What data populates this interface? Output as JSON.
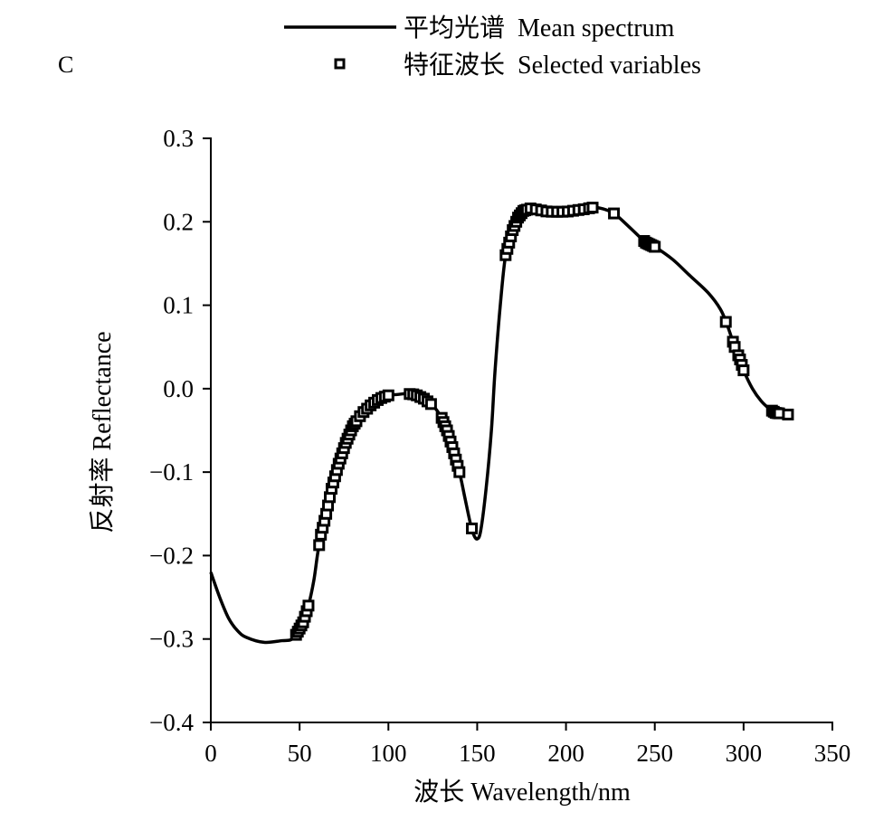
{
  "chart_data": {
    "type": "line",
    "panel_label": "C",
    "xlabel": "波长 Wavelength/nm",
    "ylabel": "反射率 Reflectance",
    "xlim": [
      0,
      350
    ],
    "ylim": [
      -0.4,
      0.3
    ],
    "xticks": [
      0,
      50,
      100,
      150,
      200,
      250,
      300,
      350
    ],
    "xtick_labels": [
      "0",
      "50",
      "100",
      "150",
      "200",
      "250",
      "300",
      "350"
    ],
    "yticks": [
      0.3,
      0.2,
      0.1,
      0.0,
      -0.1,
      -0.2,
      -0.3,
      -0.4
    ],
    "ytick_labels": [
      "0.3",
      "0.2",
      "0.1",
      "0.0",
      "−0.1",
      "−0.2",
      "−0.3",
      "−0.4"
    ],
    "grid": false,
    "legend_position": "top",
    "legend": [
      "平均光谱  Mean spectrum",
      "特征波长  Selected variables"
    ],
    "series": [
      {
        "name": "平均光谱  Mean spectrum",
        "x": [
          0,
          5,
          10,
          15,
          20,
          30,
          40,
          45,
          48,
          52,
          55,
          58,
          60,
          62,
          65,
          68,
          72,
          76,
          80,
          85,
          90,
          95,
          100,
          105,
          110,
          115,
          120,
          125,
          130,
          133,
          136,
          140,
          143,
          146,
          148,
          150,
          152,
          155,
          158,
          160,
          163,
          166,
          170,
          173,
          176,
          180,
          185,
          190,
          200,
          210,
          215,
          220,
          227,
          235,
          245,
          250,
          260,
          270,
          280,
          287,
          291,
          295,
          298,
          300,
          305,
          310,
          315,
          318,
          325
        ],
        "y": [
          -0.22,
          -0.25,
          -0.275,
          -0.29,
          -0.298,
          -0.304,
          -0.302,
          -0.301,
          -0.295,
          -0.28,
          -0.26,
          -0.23,
          -0.2,
          -0.175,
          -0.15,
          -0.12,
          -0.09,
          -0.065,
          -0.045,
          -0.03,
          -0.02,
          -0.012,
          -0.008,
          -0.007,
          -0.006,
          -0.007,
          -0.012,
          -0.02,
          -0.035,
          -0.05,
          -0.07,
          -0.1,
          -0.13,
          -0.16,
          -0.175,
          -0.18,
          -0.17,
          -0.12,
          -0.05,
          0.02,
          0.1,
          0.16,
          0.19,
          0.205,
          0.213,
          0.216,
          0.214,
          0.212,
          0.212,
          0.215,
          0.217,
          0.216,
          0.21,
          0.195,
          0.175,
          0.17,
          0.155,
          0.135,
          0.115,
          0.095,
          0.075,
          0.05,
          0.035,
          0.022,
          0.0,
          -0.015,
          -0.025,
          -0.029,
          -0.031
        ]
      },
      {
        "name": "特征波长  Selected variables",
        "x": [
          48,
          49,
          50,
          51,
          52,
          53,
          54,
          55,
          61,
          62,
          63,
          64,
          65,
          66,
          67,
          68,
          69,
          70,
          71,
          72,
          73,
          74,
          75,
          76,
          77,
          78,
          79,
          80,
          81,
          82,
          84,
          86,
          88,
          90,
          92,
          94,
          96,
          98,
          100,
          112,
          114,
          116,
          118,
          120,
          122,
          124,
          130,
          131,
          132,
          133,
          134,
          135,
          136,
          137,
          138,
          139,
          140,
          147,
          166,
          167,
          168,
          169,
          170,
          171,
          172,
          173,
          174,
          175,
          176,
          177,
          178,
          180,
          183,
          186,
          189,
          192,
          195,
          198,
          201,
          204,
          207,
          210,
          213,
          215,
          227,
          244,
          245,
          246,
          247,
          248,
          249,
          250,
          290,
          294,
          295,
          297,
          298,
          299,
          300,
          316,
          317,
          318,
          319,
          320,
          325
        ]
      }
    ]
  }
}
